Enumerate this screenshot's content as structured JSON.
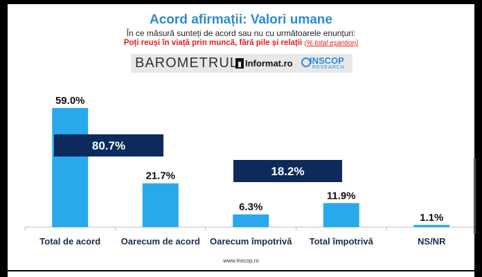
{
  "header": {
    "title": "Acord afirmații: Valori umane",
    "subtitle": "În ce măsură sunteți de acord sau nu cu următoarele enunțuri:",
    "question": "Poți reuși în viață prin muncă, fără pile și relații",
    "question_note": "(% total eșantion)"
  },
  "logos": {
    "barometrul": "BAROMETRUL",
    "informat": "Informat.ro",
    "inscop": "INSCOP",
    "research": "RESEARCH"
  },
  "footer": {
    "url": "www.inscop.ro"
  },
  "colors": {
    "bar": "#29a9ec",
    "box": "#0d2a5c",
    "title": "#2e8bd0",
    "question": "#e02020"
  },
  "chart_data": {
    "type": "bar",
    "categories": [
      "Total de acord",
      "Oarecum de acord",
      "Oarecum împotrivă",
      "Total împotrivă",
      "NS/NR"
    ],
    "values": [
      59.0,
      21.7,
      6.3,
      11.9,
      1.1
    ],
    "value_labels": [
      "59.0%",
      "21.7%",
      "6.3%",
      "11.9%",
      "1.1%"
    ],
    "ylim": [
      0,
      60
    ],
    "grid": false,
    "legend": "none",
    "annotations": [
      {
        "text": "80.7%",
        "spans": [
          "Total de acord",
          "Oarecum de acord"
        ]
      },
      {
        "text": "18.2%",
        "spans": [
          "Oarecum împotrivă",
          "Total împotrivă"
        ]
      }
    ]
  }
}
